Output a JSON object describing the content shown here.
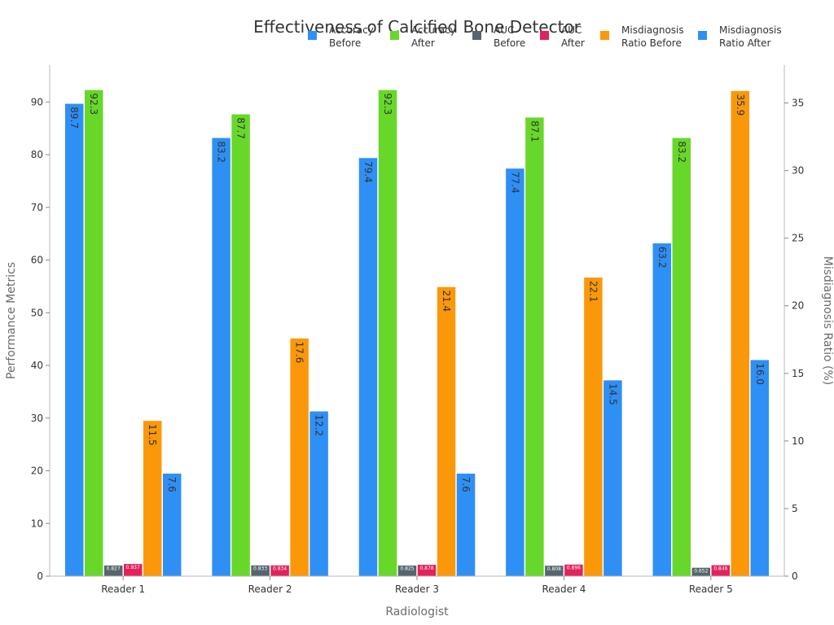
{
  "chart_data": {
    "type": "bar",
    "title": "Effectiveness of Calcified Bone Detector",
    "xlabel": "Radiologist",
    "ylabel_left": "Performance Metrics",
    "ylabel_right": "Misdiagnosis Ratio (%)",
    "categories": [
      "Reader 1",
      "Reader 2",
      "Reader 3",
      "Reader 4",
      "Reader 5"
    ],
    "ylim_left": [
      0,
      97
    ],
    "ylim_right": [
      0,
      37.8
    ],
    "left_ticks": [
      "0",
      "10",
      "20",
      "30",
      "40",
      "50",
      "60",
      "70",
      "80",
      "90"
    ],
    "right_ticks": [
      "0",
      "5",
      "10",
      "15",
      "20",
      "25",
      "30",
      "35"
    ],
    "grid": false,
    "legend_position": "top-right",
    "series": [
      {
        "name": "Accuracy Before",
        "legend_lines": [
          "Accuracy",
          "Before"
        ],
        "axis": "left",
        "color": "#2e8ff5",
        "values": [
          89.7,
          83.2,
          79.4,
          77.4,
          63.2
        ],
        "labels": [
          "89.7",
          "83.2",
          "79.4",
          "77.4",
          "63.2"
        ]
      },
      {
        "name": "Accuracy After",
        "legend_lines": [
          "Accuracy",
          "After"
        ],
        "axis": "left",
        "color": "#67d829",
        "values": [
          92.3,
          87.7,
          92.3,
          87.1,
          83.2
        ],
        "labels": [
          "92.3",
          "87.7",
          "92.3",
          "87.1",
          "83.2"
        ]
      },
      {
        "name": "AUC Before",
        "legend_lines": [
          "AUC",
          "Before"
        ],
        "axis": "left",
        "color": "#56656f",
        "scale": 2.5,
        "values": [
          0.827,
          0.833,
          0.825,
          0.808,
          0.652
        ],
        "labels": [
          "0.827",
          "0.833",
          "0.825",
          "0.808",
          "0.652"
        ]
      },
      {
        "name": "AUC After",
        "legend_lines": [
          "AUC",
          "After"
        ],
        "axis": "left",
        "color": "#e2225b",
        "scale": 2.5,
        "values": [
          0.937,
          0.834,
          0.878,
          0.896,
          0.846
        ],
        "labels": [
          "0.937",
          "0.834",
          "0.878",
          "0.896",
          "0.846"
        ]
      },
      {
        "name": "Misdiagnosis Ratio Before",
        "legend_lines": [
          "Misdiagnosis",
          "Ratio Before"
        ],
        "axis": "right",
        "color": "#fb980a",
        "values": [
          11.5,
          17.6,
          21.4,
          22.1,
          35.9
        ],
        "labels": [
          "11.5",
          "17.6",
          "21.4",
          "22.1",
          "35.9"
        ]
      },
      {
        "name": "Misdiagnosis Ratio After",
        "legend_lines": [
          "Misdiagnosis",
          "Ratio After"
        ],
        "axis": "right",
        "color": "#2e8ff5",
        "values": [
          7.6,
          12.2,
          7.6,
          14.5,
          16.0
        ],
        "labels": [
          "7.6",
          "12.2",
          "7.6",
          "14.5",
          "16.0"
        ]
      }
    ]
  }
}
